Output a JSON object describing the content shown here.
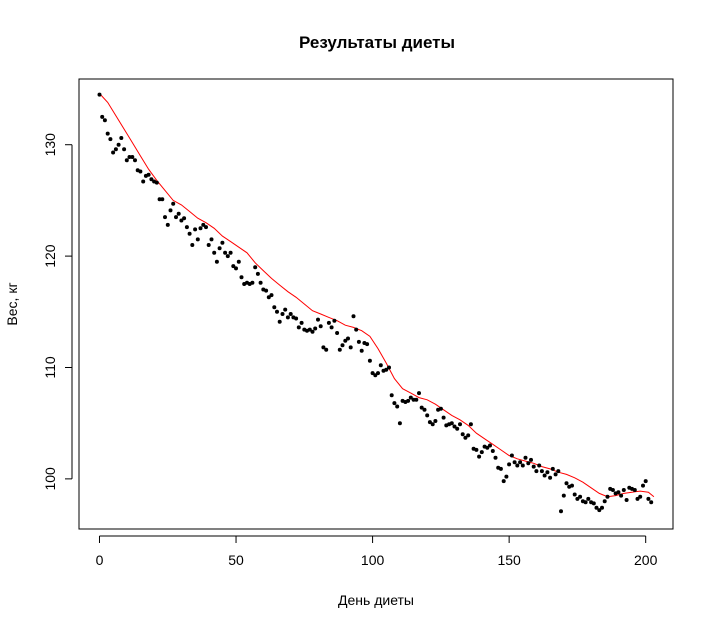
{
  "chart_data": {
    "type": "scatter",
    "title": "Результаты диеты",
    "xlabel": "День диеты",
    "ylabel": "Вес, кг",
    "xlim": [
      -7.5,
      210
    ],
    "ylim": [
      95.5,
      135.9
    ],
    "x_ticks": [
      "0",
      "50",
      "100",
      "150",
      "200"
    ],
    "y_ticks": [
      "100",
      "110",
      "120",
      "130"
    ],
    "grid": false,
    "legend": "none",
    "series": [
      {
        "style": "points",
        "color": "#000000",
        "points": [
          [
            0,
            134.5
          ],
          [
            1,
            132.5
          ],
          [
            2,
            132.2
          ],
          [
            3,
            131.0
          ],
          [
            4,
            130.5
          ],
          [
            5,
            129.3
          ],
          [
            6,
            129.6
          ],
          [
            7,
            130.0
          ],
          [
            8,
            130.6
          ],
          [
            9,
            129.6
          ],
          [
            10,
            128.6
          ],
          [
            11,
            128.9
          ],
          [
            12,
            128.9
          ],
          [
            13,
            128.6
          ],
          [
            14,
            127.7
          ],
          [
            15,
            127.6
          ],
          [
            16,
            126.7
          ],
          [
            17,
            127.2
          ],
          [
            18,
            127.3
          ],
          [
            19,
            126.9
          ],
          [
            20,
            126.7
          ],
          [
            21,
            126.6
          ],
          [
            22,
            125.1
          ],
          [
            23,
            125.1
          ],
          [
            24,
            123.5
          ],
          [
            25,
            122.8
          ],
          [
            26,
            124.1
          ],
          [
            27,
            124.7
          ],
          [
            28,
            123.5
          ],
          [
            29,
            123.8
          ],
          [
            30,
            123.2
          ],
          [
            31,
            123.4
          ],
          [
            32,
            122.6
          ],
          [
            33,
            122.0
          ],
          [
            34,
            121.0
          ],
          [
            35,
            122.4
          ],
          [
            36,
            121.5
          ],
          [
            37,
            122.5
          ],
          [
            38,
            122.8
          ],
          [
            39,
            122.6
          ],
          [
            40,
            121.0
          ],
          [
            41,
            121.5
          ],
          [
            42,
            120.3
          ],
          [
            43,
            119.5
          ],
          [
            44,
            120.7
          ],
          [
            45,
            121.2
          ],
          [
            46,
            120.3
          ],
          [
            47,
            120.0
          ],
          [
            48,
            120.3
          ],
          [
            49,
            119.1
          ],
          [
            50,
            118.9
          ],
          [
            51,
            119.5
          ],
          [
            52,
            118.1
          ],
          [
            53,
            117.5
          ],
          [
            54,
            117.6
          ],
          [
            55,
            117.5
          ],
          [
            56,
            117.6
          ],
          [
            57,
            119.0
          ],
          [
            58,
            118.4
          ],
          [
            59,
            117.6
          ],
          [
            60,
            117.0
          ],
          [
            61,
            116.9
          ],
          [
            62,
            116.3
          ],
          [
            63,
            116.5
          ],
          [
            64,
            115.4
          ],
          [
            65,
            115.0
          ],
          [
            66,
            114.1
          ],
          [
            67,
            114.8
          ],
          [
            68,
            115.2
          ],
          [
            69,
            114.5
          ],
          [
            70,
            114.8
          ],
          [
            71,
            114.5
          ],
          [
            72,
            114.4
          ],
          [
            73,
            113.6
          ],
          [
            74,
            114.0
          ],
          [
            75,
            113.4
          ],
          [
            76,
            113.3
          ],
          [
            77,
            113.4
          ],
          [
            78,
            113.2
          ],
          [
            79,
            113.5
          ],
          [
            80,
            114.3
          ],
          [
            81,
            113.7
          ],
          [
            82,
            111.8
          ],
          [
            83,
            111.6
          ],
          [
            84,
            114.0
          ],
          [
            85,
            113.6
          ],
          [
            86,
            114.2
          ],
          [
            87,
            113.1
          ],
          [
            88,
            111.6
          ],
          [
            89,
            112.0
          ],
          [
            90,
            112.4
          ],
          [
            91,
            112.6
          ],
          [
            92,
            111.8
          ],
          [
            93,
            114.6
          ],
          [
            94,
            113.4
          ],
          [
            95,
            112.3
          ],
          [
            96,
            111.5
          ],
          [
            97,
            112.2
          ],
          [
            98,
            112.1
          ],
          [
            99,
            110.6
          ],
          [
            100,
            109.5
          ],
          [
            101,
            109.3
          ],
          [
            102,
            109.5
          ],
          [
            103,
            110.2
          ],
          [
            104,
            109.7
          ],
          [
            105,
            109.8
          ],
          [
            106,
            110.0
          ],
          [
            107,
            107.5
          ],
          [
            108,
            106.8
          ],
          [
            109,
            106.5
          ],
          [
            110,
            105.0
          ],
          [
            111,
            107.0
          ],
          [
            112,
            106.9
          ],
          [
            113,
            107.0
          ],
          [
            114,
            107.3
          ],
          [
            115,
            107.1
          ],
          [
            116,
            107.1
          ],
          [
            117,
            107.7
          ],
          [
            118,
            106.4
          ],
          [
            119,
            106.2
          ],
          [
            120,
            105.7
          ],
          [
            121,
            105.1
          ],
          [
            122,
            104.9
          ],
          [
            123,
            105.2
          ],
          [
            124,
            106.2
          ],
          [
            125,
            106.3
          ],
          [
            126,
            105.5
          ],
          [
            127,
            104.8
          ],
          [
            128,
            104.9
          ],
          [
            129,
            105.0
          ],
          [
            130,
            104.7
          ],
          [
            131,
            104.5
          ],
          [
            132,
            104.9
          ],
          [
            133,
            104.0
          ],
          [
            134,
            103.7
          ],
          [
            135,
            103.9
          ],
          [
            136,
            104.9
          ],
          [
            137,
            102.7
          ],
          [
            138,
            102.6
          ],
          [
            139,
            102.0
          ],
          [
            140,
            102.4
          ],
          [
            141,
            102.9
          ],
          [
            142,
            102.8
          ],
          [
            143,
            103.0
          ],
          [
            144,
            102.5
          ],
          [
            145,
            101.9
          ],
          [
            146,
            101.0
          ],
          [
            147,
            100.9
          ],
          [
            148,
            99.8
          ],
          [
            149,
            100.2
          ],
          [
            150,
            101.3
          ],
          [
            151,
            102.1
          ],
          [
            152,
            101.5
          ],
          [
            153,
            101.2
          ],
          [
            154,
            101.5
          ],
          [
            155,
            101.2
          ],
          [
            156,
            101.9
          ],
          [
            157,
            101.4
          ],
          [
            158,
            101.7
          ],
          [
            159,
            101.1
          ],
          [
            160,
            100.7
          ],
          [
            161,
            101.2
          ],
          [
            162,
            100.7
          ],
          [
            163,
            100.3
          ],
          [
            164,
            100.6
          ],
          [
            165,
            100.1
          ],
          [
            166,
            100.9
          ],
          [
            167,
            100.4
          ],
          [
            168,
            100.7
          ],
          [
            169,
            97.1
          ],
          [
            170,
            98.5
          ],
          [
            171,
            99.6
          ],
          [
            172,
            99.3
          ],
          [
            173,
            99.4
          ],
          [
            174,
            98.6
          ],
          [
            175,
            98.2
          ],
          [
            176,
            98.4
          ],
          [
            177,
            98.0
          ],
          [
            178,
            97.9
          ],
          [
            179,
            98.2
          ],
          [
            180,
            97.9
          ],
          [
            181,
            97.8
          ],
          [
            182,
            97.4
          ],
          [
            183,
            97.2
          ],
          [
            184,
            97.4
          ],
          [
            185,
            98.0
          ],
          [
            186,
            98.4
          ],
          [
            187,
            99.1
          ],
          [
            188,
            99.0
          ],
          [
            189,
            98.7
          ],
          [
            190,
            98.8
          ],
          [
            191,
            98.5
          ],
          [
            192,
            99.0
          ],
          [
            193,
            98.1
          ],
          [
            194,
            99.2
          ],
          [
            195,
            99.1
          ],
          [
            196,
            99.0
          ],
          [
            197,
            98.2
          ],
          [
            198,
            98.4
          ],
          [
            199,
            99.4
          ],
          [
            200,
            99.8
          ],
          [
            201,
            98.2
          ],
          [
            202,
            97.9
          ]
        ]
      },
      {
        "style": "line",
        "color": "#ff0000",
        "points": [
          [
            0,
            134.6
          ],
          [
            3,
            133.8
          ],
          [
            6,
            132.6
          ],
          [
            9,
            131.4
          ],
          [
            12,
            130.2
          ],
          [
            15,
            129.0
          ],
          [
            18,
            127.8
          ],
          [
            21,
            126.8
          ],
          [
            24,
            125.9
          ],
          [
            27,
            125.0
          ],
          [
            30,
            124.6
          ],
          [
            33,
            124.0
          ],
          [
            36,
            123.4
          ],
          [
            39,
            123.0
          ],
          [
            42,
            122.5
          ],
          [
            45,
            121.8
          ],
          [
            48,
            121.3
          ],
          [
            51,
            120.8
          ],
          [
            54,
            120.3
          ],
          [
            57,
            119.4
          ],
          [
            60,
            118.7
          ],
          [
            63,
            118.0
          ],
          [
            66,
            117.4
          ],
          [
            69,
            116.8
          ],
          [
            72,
            116.3
          ],
          [
            75,
            115.7
          ],
          [
            78,
            115.1
          ],
          [
            81,
            114.8
          ],
          [
            84,
            114.5
          ],
          [
            87,
            114.2
          ],
          [
            90,
            113.8
          ],
          [
            93,
            113.6
          ],
          [
            96,
            113.3
          ],
          [
            99,
            112.8
          ],
          [
            102,
            111.7
          ],
          [
            105,
            110.4
          ],
          [
            108,
            109.0
          ],
          [
            111,
            108.1
          ],
          [
            114,
            107.7
          ],
          [
            117,
            107.3
          ],
          [
            120,
            107.1
          ],
          [
            123,
            106.7
          ],
          [
            126,
            106.2
          ],
          [
            129,
            105.7
          ],
          [
            132,
            105.3
          ],
          [
            135,
            104.8
          ],
          [
            138,
            104.1
          ],
          [
            141,
            103.6
          ],
          [
            144,
            103.1
          ],
          [
            147,
            102.6
          ],
          [
            150,
            102.1
          ],
          [
            153,
            101.8
          ],
          [
            156,
            101.6
          ],
          [
            159,
            101.4
          ],
          [
            162,
            101.1
          ],
          [
            165,
            100.9
          ],
          [
            168,
            100.6
          ],
          [
            171,
            100.4
          ],
          [
            174,
            100.1
          ],
          [
            177,
            99.7
          ],
          [
            180,
            99.2
          ],
          [
            183,
            98.7
          ],
          [
            186,
            98.4
          ],
          [
            189,
            98.5
          ],
          [
            192,
            98.7
          ],
          [
            195,
            98.8
          ],
          [
            198,
            98.9
          ],
          [
            201,
            98.8
          ],
          [
            203,
            98.4
          ]
        ]
      }
    ]
  }
}
